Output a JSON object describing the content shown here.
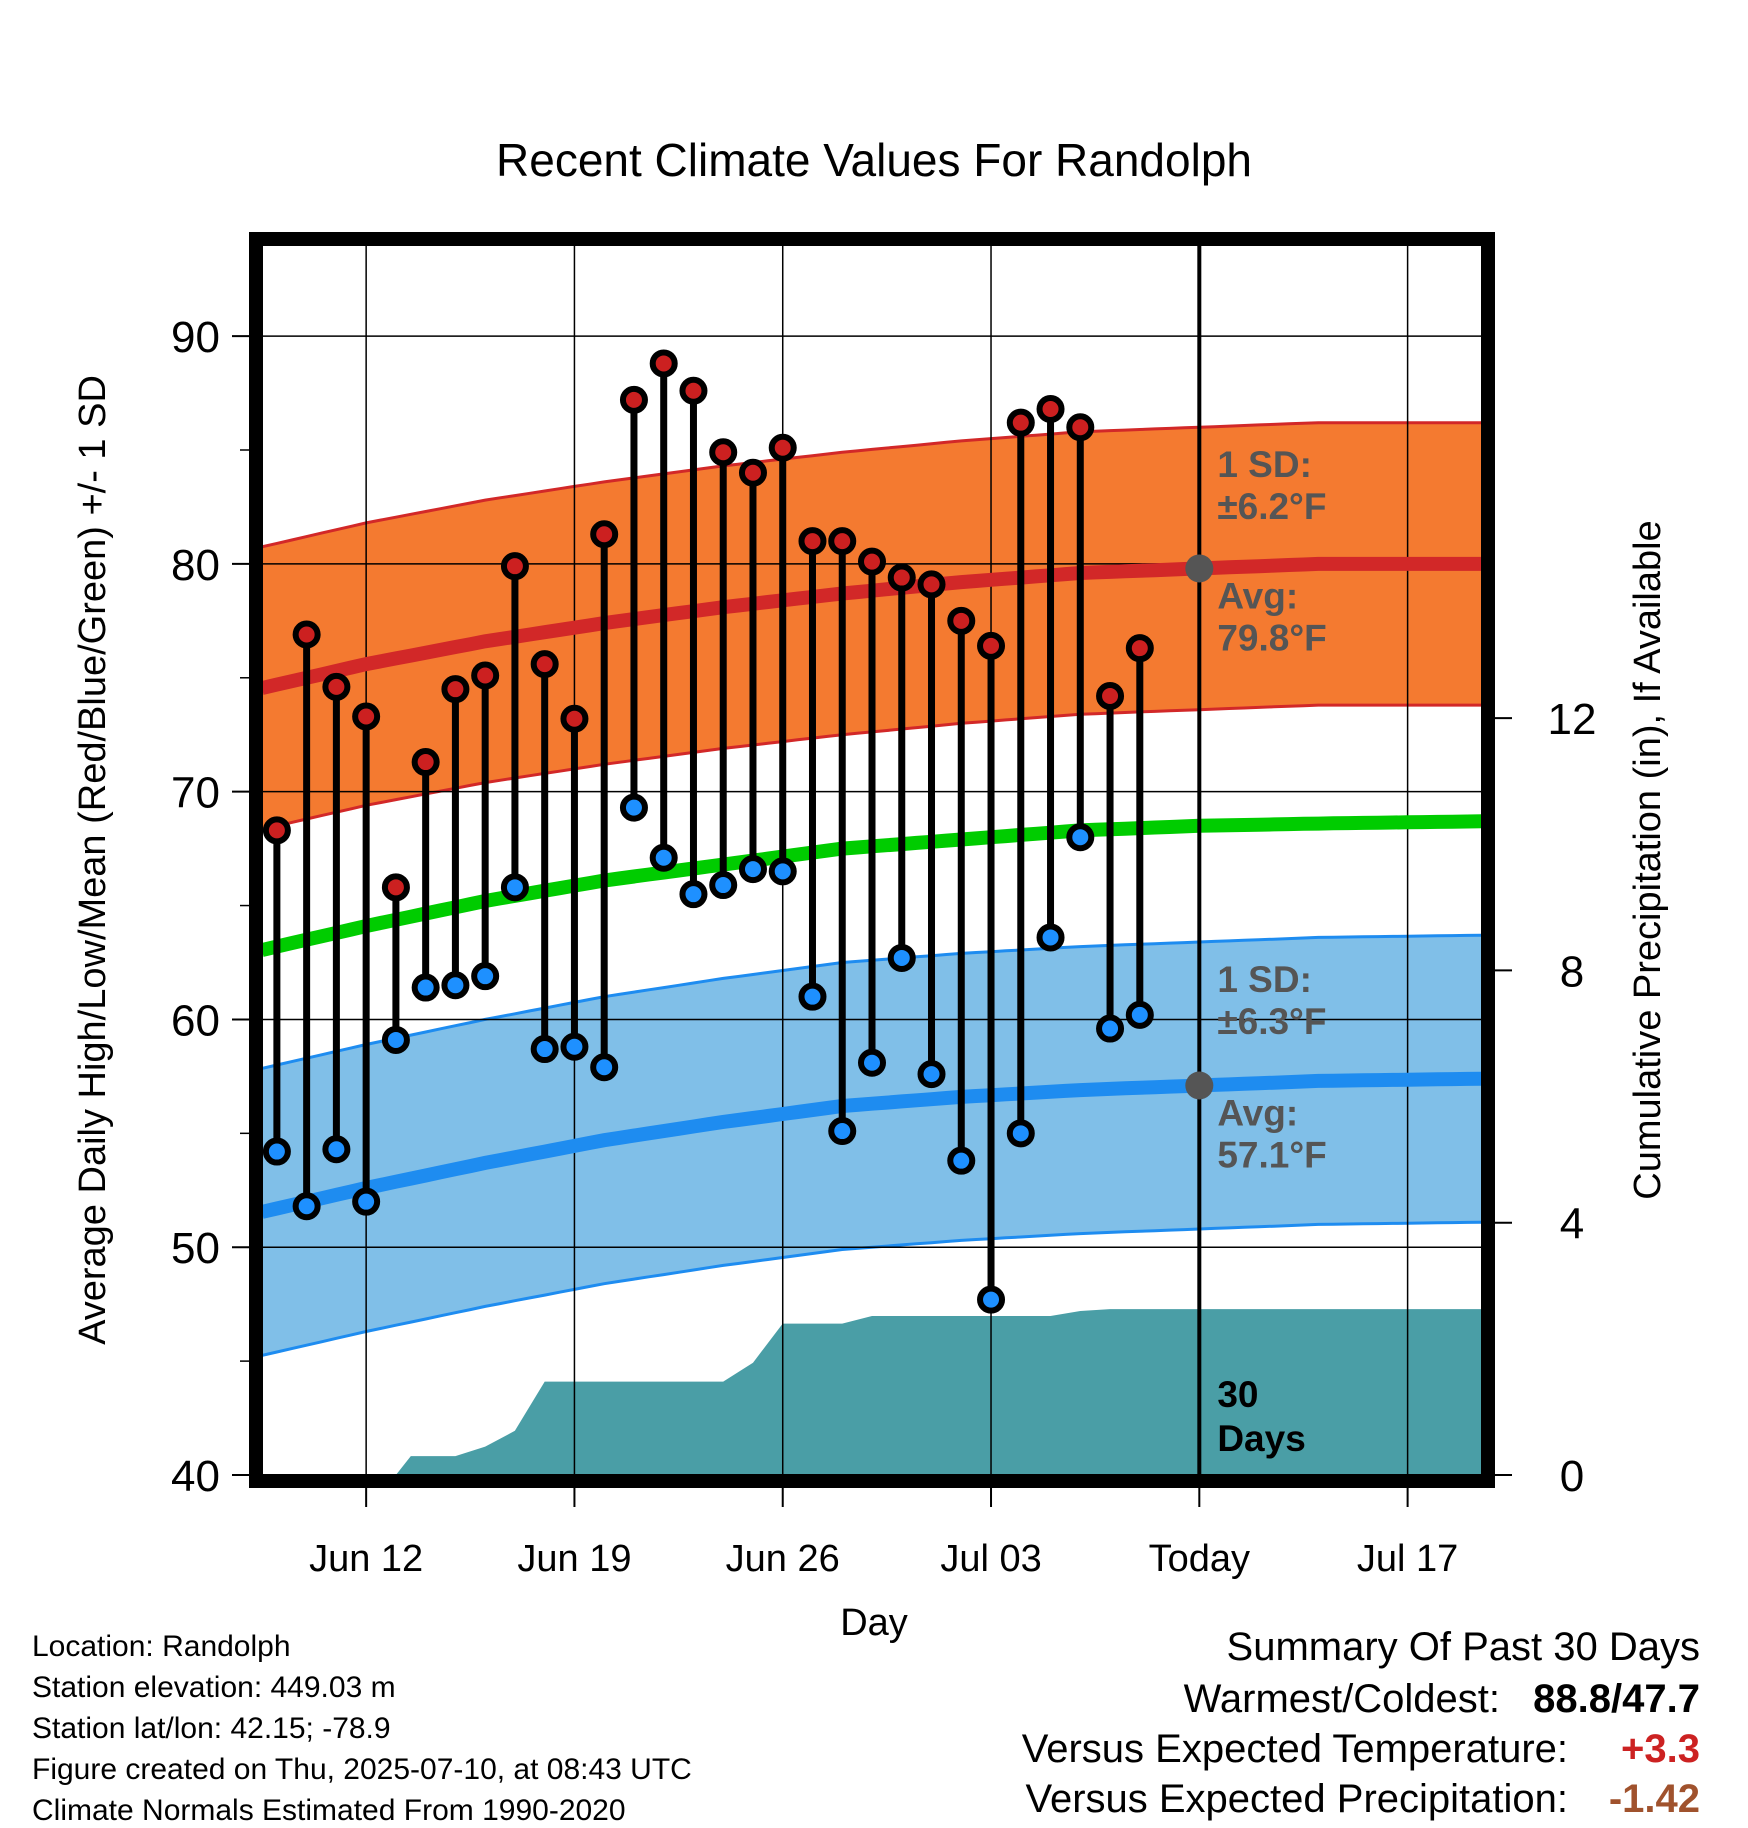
{
  "chart_data": {
    "type": "line",
    "title": "Recent Climate Values For Randolph",
    "xlabel": "Day",
    "ylabel": "Average Daily High/Low/Mean (Red/Blue/Green) +/- 1 SD",
    "y2label": "Cumulative Precipitation (in), If Available",
    "ylim": [
      40,
      94
    ],
    "y2lim": [
      0,
      19.5
    ],
    "y_ticks": [
      40,
      50,
      60,
      70,
      80,
      90
    ],
    "y2_ticks": [
      0,
      4,
      8,
      12
    ],
    "x_day_range": [
      -31.5,
      9.5
    ],
    "x_tick_days": [
      -28,
      -21,
      -14,
      -7,
      0,
      7
    ],
    "x_tick_labels": [
      "Jun 12",
      "Jun 19",
      "Jun 26",
      "Jul 03",
      "Today",
      "Jul 17"
    ],
    "grid": true,
    "today_day": 0,
    "observed": {
      "days": [
        -31,
        -30,
        -29,
        -28,
        -27,
        -26,
        -25,
        -24,
        -23,
        -22,
        -21,
        -20,
        -19,
        -18,
        -17,
        -16,
        -15,
        -14,
        -13,
        -12,
        -11,
        -10,
        -9,
        -8,
        -7,
        -6,
        -5,
        -4,
        -3,
        -2,
        -1
      ],
      "highs": [
        68.3,
        76.9,
        74.6,
        73.3,
        65.8,
        71.3,
        74.5,
        75.1,
        79.9,
        75.6,
        73.2,
        81.3,
        87.2,
        88.8,
        87.6,
        84.9,
        84.0,
        85.1,
        81.0,
        81.0,
        80.1,
        79.4,
        79.1,
        77.5,
        76.4,
        86.2,
        86.8,
        86.0,
        74.2,
        76.3,
        null
      ],
      "lows": [
        54.2,
        51.8,
        54.3,
        52.0,
        59.1,
        61.4,
        61.5,
        61.9,
        65.8,
        58.7,
        58.8,
        57.9,
        69.3,
        67.1,
        65.5,
        65.9,
        66.6,
        66.5,
        61.0,
        55.1,
        58.1,
        62.7,
        57.6,
        53.8,
        47.7,
        55.0,
        63.6,
        68.0,
        59.6,
        60.2,
        null
      ]
    },
    "normals": {
      "days": [
        -32,
        -28,
        -24,
        -20,
        -16,
        -12,
        -8,
        -4,
        0,
        4,
        9.5
      ],
      "avg_high": [
        74.4,
        75.6,
        76.6,
        77.4,
        78.1,
        78.7,
        79.2,
        79.6,
        79.8,
        80.0,
        80.0
      ],
      "avg_low": [
        51.4,
        52.6,
        53.7,
        54.7,
        55.5,
        56.2,
        56.6,
        56.9,
        57.1,
        57.3,
        57.4
      ],
      "avg_mean": [
        62.9,
        64.1,
        65.2,
        66.1,
        66.8,
        67.5,
        67.9,
        68.3,
        68.5,
        68.6,
        68.7
      ],
      "high_sd": 6.2,
      "low_sd": 6.3
    },
    "cumulative_precip": {
      "days": [
        -31.5,
        -27,
        -26.5,
        -25,
        -24,
        -23,
        -22,
        -21,
        -20,
        -19,
        -18,
        -17,
        -16,
        -15,
        -14,
        -13,
        -12,
        -11,
        -10,
        -9,
        -8,
        -7,
        -6,
        -5,
        -4,
        -3,
        -2,
        -1,
        0,
        9.5
      ],
      "values": [
        0,
        0,
        0.3,
        0.3,
        0.45,
        0.7,
        1.48,
        1.48,
        1.48,
        1.48,
        1.48,
        1.48,
        1.48,
        1.78,
        2.4,
        2.4,
        2.4,
        2.52,
        2.52,
        2.52,
        2.52,
        2.52,
        2.52,
        2.52,
        2.6,
        2.63,
        2.63,
        2.63,
        2.63,
        2.63
      ]
    },
    "annotations": {
      "high_sd_line1": "1 SD:",
      "high_sd_line2": "±6.2°F",
      "high_avg_line1": "Avg:",
      "high_avg_line2": "79.8°F",
      "low_sd_line1": "1 SD:",
      "low_sd_line2": "±6.3°F",
      "low_avg_line1": "Avg:",
      "low_avg_line2": "57.1°F",
      "window_line1": "30",
      "window_line2": "Days"
    },
    "colors": {
      "high_band": "#f47a30",
      "high_line": "#d22828",
      "low_band": "#80bfe8",
      "low_line": "#1e8cf0",
      "mean_line": "#00cc00",
      "precip_fill": "#4a9ea6",
      "high_dot": "#cc2020",
      "low_dot": "#1e90ff",
      "today_dot": "#555555"
    }
  },
  "info": {
    "location": "Location: Randolph",
    "elevation": "Station elevation: 449.03 m",
    "latlon": "Station lat/lon: 42.15; -78.9",
    "created": "Figure created on Thu, 2025-07-10, at 08:43 UTC",
    "normals": "Climate Normals Estimated From 1990-2020"
  },
  "summary": {
    "title": "Summary Of Past 30 Days",
    "warm_cold_label": "Warmest/Coldest:",
    "warm_cold_value": "88.8/47.7",
    "temp_label": "Versus Expected Temperature:",
    "temp_value": "+3.3",
    "temp_color": "#cc2222",
    "precip_label": "Versus Expected Precipitation:",
    "precip_value": "-1.42",
    "precip_color": "#a0522d"
  }
}
